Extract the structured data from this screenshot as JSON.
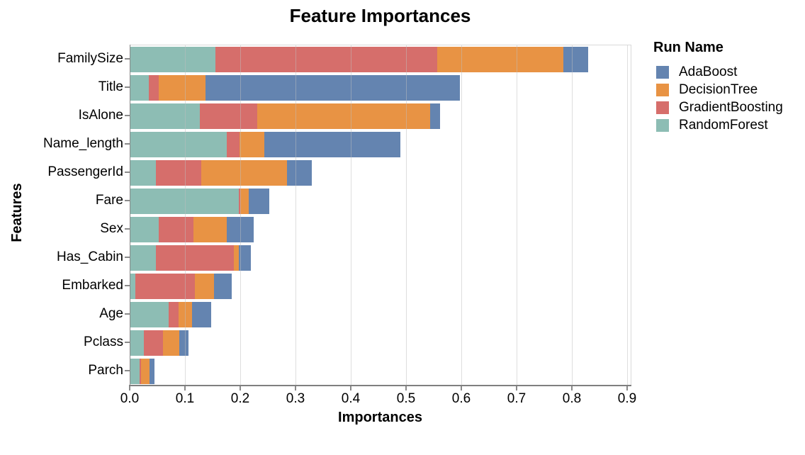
{
  "chart_data": {
    "type": "bar",
    "stacked": true,
    "orientation": "horizontal",
    "title": "Feature Importances",
    "xlabel": "Importances",
    "ylabel": "Features",
    "legend_title": "Run Name",
    "legend_position": "right",
    "grid": true,
    "xlim": [
      0,
      0.906
    ],
    "xticks": [
      0.0,
      0.1,
      0.2,
      0.3,
      0.4,
      0.5,
      0.6,
      0.7,
      0.8,
      0.9
    ],
    "categories": [
      "FamilySize",
      "Title",
      "IsAlone",
      "Name_length",
      "PassengerId",
      "Fare",
      "Sex",
      "Has_Cabin",
      "Embarked",
      "Age",
      "Pclass",
      "Parch"
    ],
    "series": [
      {
        "name": "RandomForest",
        "color": "#8dbdb4",
        "values": [
          0.155,
          0.035,
          0.127,
          0.175,
          0.047,
          0.198,
          0.052,
          0.047,
          0.01,
          0.07,
          0.026,
          0.018
        ]
      },
      {
        "name": "GradientBoosting",
        "color": "#d66e6b",
        "values": [
          0.402,
          0.018,
          0.104,
          0.024,
          0.082,
          0.002,
          0.063,
          0.141,
          0.108,
          0.019,
          0.034,
          0.002
        ]
      },
      {
        "name": "DecisionTree",
        "color": "#e89344",
        "values": [
          0.228,
          0.084,
          0.312,
          0.045,
          0.156,
          0.016,
          0.061,
          0.01,
          0.034,
          0.024,
          0.03,
          0.016
        ]
      },
      {
        "name": "AdaBoost",
        "color": "#6484b0",
        "values": [
          0.045,
          0.461,
          0.018,
          0.246,
          0.044,
          0.036,
          0.048,
          0.021,
          0.032,
          0.035,
          0.016,
          0.009
        ]
      }
    ],
    "legend_order": [
      "AdaBoost",
      "DecisionTree",
      "GradientBoosting",
      "RandomForest"
    ]
  },
  "colors": {
    "grid": "#dddddd",
    "axis": "#8a8a8a",
    "text": "#000000",
    "background": "#ffffff"
  }
}
